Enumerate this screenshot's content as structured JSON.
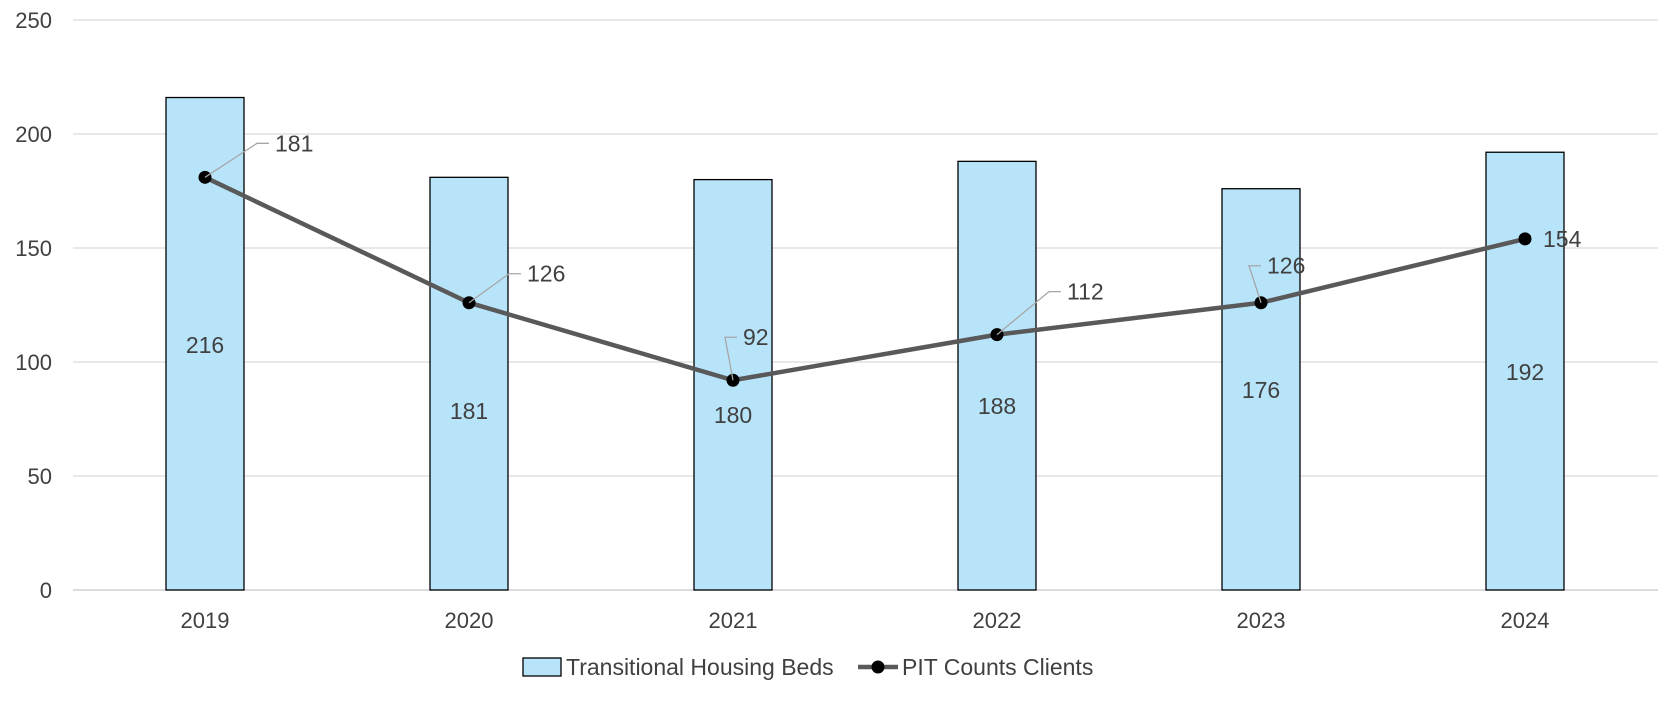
{
  "chart_data": {
    "type": "bar",
    "categories": [
      "2019",
      "2020",
      "2021",
      "2022",
      "2023",
      "2024"
    ],
    "series": [
      {
        "name": "Transitional Housing Beds",
        "type": "bar",
        "values": [
          216,
          181,
          180,
          188,
          176,
          192
        ],
        "color": "#B8E4FA"
      },
      {
        "name": "PIT Counts Clients",
        "type": "line",
        "values": [
          181,
          126,
          92,
          112,
          126,
          154
        ],
        "color": "#595959"
      }
    ],
    "title": "",
    "xlabel": "",
    "ylabel": "",
    "ylim": [
      0,
      250
    ],
    "yticks": [
      "0",
      "50",
      "100",
      "150",
      "200",
      "250"
    ],
    "grid": true,
    "legend": "bottom-center"
  }
}
